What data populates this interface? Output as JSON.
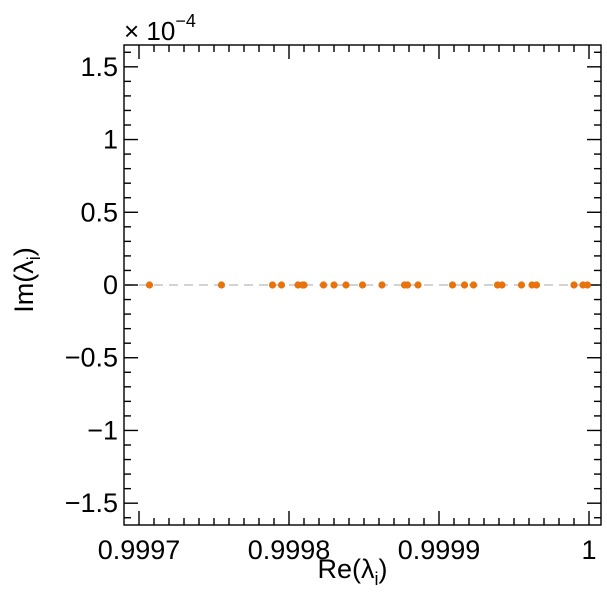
{
  "chart_data": {
    "type": "scatter",
    "title": "",
    "xlabel": "Re(λ",
    "xlabel_sub": "i",
    "xlabel_close": ")",
    "ylabel": "Im(λ",
    "ylabel_sub": "i",
    "ylabel_close": ")",
    "y_multiplier_base": "× 10",
    "y_multiplier_exp": "−4",
    "xlim": [
      0.99969,
      1.000008
    ],
    "ylim": [
      -1.65,
      1.65
    ],
    "x_ticks": [
      {
        "value": 0.9997,
        "label": "0.9997"
      },
      {
        "value": 0.9998,
        "label": "0.9998"
      },
      {
        "value": 0.9999,
        "label": "0.9999"
      },
      {
        "value": 1.0,
        "label": "1"
      }
    ],
    "y_ticks": [
      {
        "value": 1.5,
        "label": "1.5"
      },
      {
        "value": 1.0,
        "label": "1"
      },
      {
        "value": 0.5,
        "label": "0.5"
      },
      {
        "value": 0.0,
        "label": "0"
      },
      {
        "value": -0.5,
        "label": "−0.5"
      },
      {
        "value": -1.0,
        "label": "−1"
      },
      {
        "value": -1.5,
        "label": "−1.5"
      }
    ],
    "grid": false,
    "reference_line_y": 0,
    "marker_color": "#e8720c",
    "reference_line_color": "#d3d3d3",
    "series": [
      {
        "x": [
          0.999707,
          0.999755,
          0.999789,
          0.999795,
          0.999806,
          0.999809,
          0.99981,
          0.999823,
          0.99983,
          0.999838,
          0.999849,
          0.999862,
          0.999877,
          0.999879,
          0.999886,
          0.999909,
          0.999917,
          0.999923,
          0.999939,
          0.999942,
          0.999955,
          0.999962,
          0.999965,
          0.99999,
          0.999996,
          0.999999
        ],
        "y": [
          0,
          0,
          0,
          0,
          0,
          0,
          0,
          0,
          0,
          0,
          0,
          0,
          0,
          0,
          0,
          0,
          0,
          0,
          0,
          0,
          0,
          0,
          0,
          0,
          0,
          0
        ]
      }
    ]
  }
}
